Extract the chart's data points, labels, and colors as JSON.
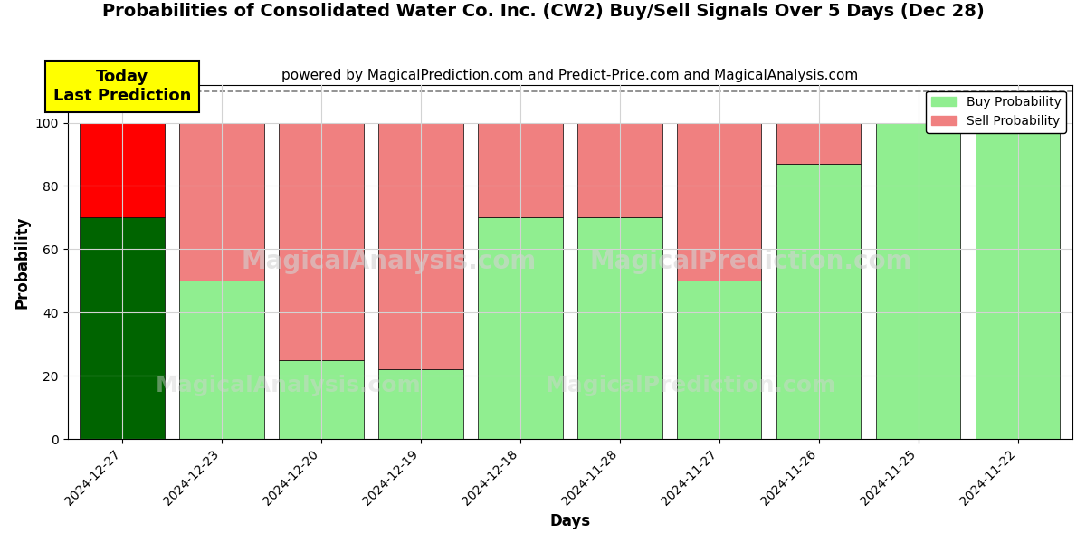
{
  "title": "Probabilities of Consolidated Water Co. Inc. (CW2) Buy/Sell Signals Over 5 Days (Dec 28)",
  "subtitle": "powered by MagicalPrediction.com and Predict-Price.com and MagicalAnalysis.com",
  "xlabel": "Days",
  "ylabel": "Probability",
  "categories": [
    "2024-12-27",
    "2024-12-23",
    "2024-12-20",
    "2024-12-19",
    "2024-12-18",
    "2024-11-28",
    "2024-11-27",
    "2024-11-26",
    "2024-11-25",
    "2024-11-22"
  ],
  "buy_values": [
    70,
    50,
    25,
    22,
    70,
    70,
    50,
    87,
    100,
    100
  ],
  "sell_values": [
    30,
    50,
    75,
    78,
    30,
    30,
    50,
    13,
    0,
    0
  ],
  "buy_colors_normal": "#90EE90",
  "sell_colors_normal": "#F08080",
  "buy_color_today": "#006400",
  "sell_color_today": "#FF0000",
  "today_annotation": "Today\nLast Prediction",
  "ylim": [
    0,
    112
  ],
  "yticks": [
    0,
    20,
    40,
    60,
    80,
    100
  ],
  "dashed_line_y": 110,
  "legend_buy": "Buy Probability",
  "legend_sell": "Sell Probability",
  "bar_width": 0.85,
  "title_fontsize": 14,
  "subtitle_fontsize": 11,
  "axis_label_fontsize": 12,
  "tick_fontsize": 10,
  "annotation_fontsize": 13,
  "watermark1": "MagicalAnalysis.com",
  "watermark2": "MagicalPrediction.com"
}
